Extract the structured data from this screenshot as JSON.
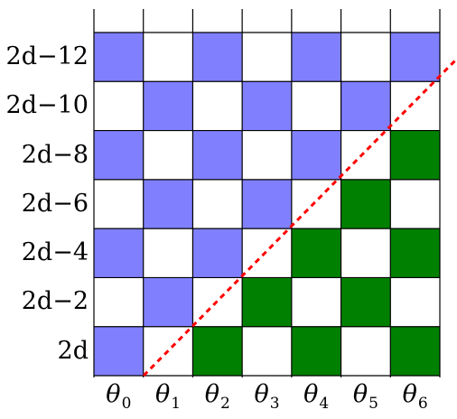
{
  "colors": {
    "blue": "#8080ff",
    "green": "#008000",
    "white": "#ffffff",
    "line": "#000000",
    "diagonal": "#ff0000"
  },
  "rows": [
    {
      "label": "2d−12",
      "cells": [
        "blue",
        "white",
        "blue",
        "white",
        "blue",
        "white",
        "blue"
      ]
    },
    {
      "label": "2d−10",
      "cells": [
        "white",
        "blue",
        "white",
        "blue",
        "white",
        "blue",
        "white"
      ]
    },
    {
      "label": "2d−8",
      "cells": [
        "blue",
        "white",
        "blue",
        "white",
        "blue",
        "white",
        "green"
      ]
    },
    {
      "label": "2d−6",
      "cells": [
        "white",
        "blue",
        "white",
        "blue",
        "white",
        "green",
        "white"
      ]
    },
    {
      "label": "2d−4",
      "cells": [
        "blue",
        "white",
        "blue",
        "white",
        "green",
        "white",
        "green"
      ]
    },
    {
      "label": "2d−2",
      "cells": [
        "white",
        "blue",
        "white",
        "green",
        "white",
        "green",
        "white"
      ]
    },
    {
      "label": "2d",
      "cells": [
        "blue",
        "white",
        "green",
        "white",
        "green",
        "white",
        "green"
      ]
    }
  ],
  "columns": [
    {
      "symbol": "θ",
      "sub": "0"
    },
    {
      "symbol": "θ",
      "sub": "1"
    },
    {
      "symbol": "θ",
      "sub": "2"
    },
    {
      "symbol": "θ",
      "sub": "3"
    },
    {
      "symbol": "θ",
      "sub": "4"
    },
    {
      "symbol": "θ",
      "sub": "5"
    },
    {
      "symbol": "θ",
      "sub": "6"
    }
  ],
  "diagonal": {
    "style": "dashed"
  }
}
